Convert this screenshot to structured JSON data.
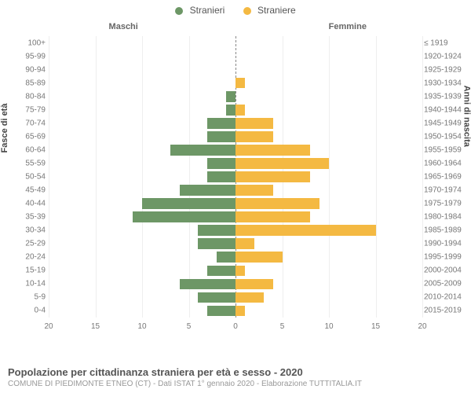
{
  "legend": {
    "male": {
      "label": "Stranieri",
      "color": "#6d9766"
    },
    "female": {
      "label": "Straniere",
      "color": "#f4b942"
    }
  },
  "headers": {
    "left": "Maschi",
    "right": "Femmine"
  },
  "axis": {
    "left_title": "Fasce di età",
    "right_title": "Anni di nascita",
    "x_ticks": [
      -20,
      -15,
      -10,
      -5,
      0,
      5,
      10,
      15,
      20
    ],
    "x_max": 20
  },
  "chart": {
    "type": "population-pyramid",
    "background_color": "#ffffff",
    "grid_color": "#eeeeee",
    "center_line_color": "#888888",
    "bar_gap_pct": 20,
    "text_color": "#777777",
    "rows": [
      {
        "age": "100+",
        "birth": "≤ 1919",
        "m": 0,
        "f": 0
      },
      {
        "age": "95-99",
        "birth": "1920-1924",
        "m": 0,
        "f": 0
      },
      {
        "age": "90-94",
        "birth": "1925-1929",
        "m": 0,
        "f": 0
      },
      {
        "age": "85-89",
        "birth": "1930-1934",
        "m": 0,
        "f": 1
      },
      {
        "age": "80-84",
        "birth": "1935-1939",
        "m": 1,
        "f": 0
      },
      {
        "age": "75-79",
        "birth": "1940-1944",
        "m": 1,
        "f": 1
      },
      {
        "age": "70-74",
        "birth": "1945-1949",
        "m": 3,
        "f": 4
      },
      {
        "age": "65-69",
        "birth": "1950-1954",
        "m": 3,
        "f": 4
      },
      {
        "age": "60-64",
        "birth": "1955-1959",
        "m": 7,
        "f": 8
      },
      {
        "age": "55-59",
        "birth": "1960-1964",
        "m": 3,
        "f": 10
      },
      {
        "age": "50-54",
        "birth": "1965-1969",
        "m": 3,
        "f": 8
      },
      {
        "age": "45-49",
        "birth": "1970-1974",
        "m": 6,
        "f": 4
      },
      {
        "age": "40-44",
        "birth": "1975-1979",
        "m": 10,
        "f": 9
      },
      {
        "age": "35-39",
        "birth": "1980-1984",
        "m": 11,
        "f": 8
      },
      {
        "age": "30-34",
        "birth": "1985-1989",
        "m": 4,
        "f": 15
      },
      {
        "age": "25-29",
        "birth": "1990-1994",
        "m": 4,
        "f": 2
      },
      {
        "age": "20-24",
        "birth": "1995-1999",
        "m": 2,
        "f": 5
      },
      {
        "age": "15-19",
        "birth": "2000-2004",
        "m": 3,
        "f": 1
      },
      {
        "age": "10-14",
        "birth": "2005-2009",
        "m": 6,
        "f": 4
      },
      {
        "age": "5-9",
        "birth": "2010-2014",
        "m": 4,
        "f": 3
      },
      {
        "age": "0-4",
        "birth": "2015-2019",
        "m": 3,
        "f": 1
      }
    ]
  },
  "footer": {
    "title": "Popolazione per cittadinanza straniera per età e sesso - 2020",
    "source": "COMUNE DI PIEDIMONTE ETNEO (CT) - Dati ISTAT 1° gennaio 2020 - Elaborazione TUTTITALIA.IT"
  }
}
